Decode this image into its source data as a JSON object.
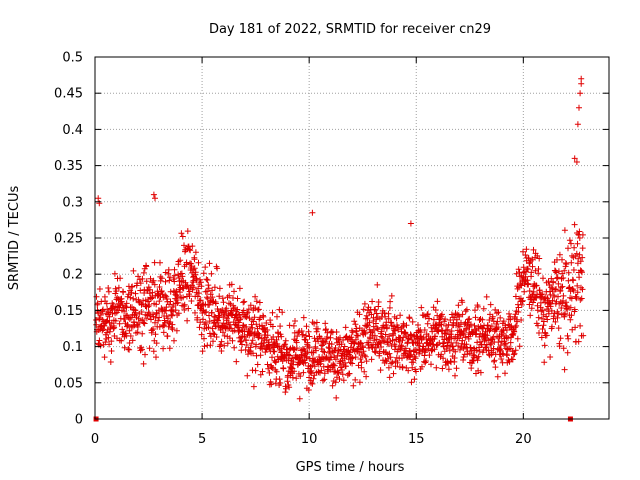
{
  "chart_data": {
    "type": "scatter",
    "title": "Day 181 of 2022, SRMTID for receiver cn29",
    "xlabel": "GPS time / hours",
    "ylabel": "SRMTID / TECUs",
    "xlim": [
      0,
      24
    ],
    "ylim": [
      0,
      0.5
    ],
    "xticks": [
      0,
      5,
      10,
      15,
      20
    ],
    "xtick_labels": [
      "0",
      "5",
      "10",
      "15",
      "20"
    ],
    "yticks": [
      0,
      0.05,
      0.1,
      0.15,
      0.2,
      0.25,
      0.3,
      0.35,
      0.4,
      0.45,
      0.5
    ],
    "ytick_labels": [
      "0",
      "0.05",
      "0.1",
      "0.15",
      "0.2",
      "0.25",
      "0.3",
      "0.35",
      "0.4",
      "0.45",
      "0.5"
    ],
    "grid": true,
    "marker": "+",
    "color": "#e00000",
    "series": [
      {
        "name": "SRMTID",
        "profile_x": [
          0,
          0.5,
          1,
          1.5,
          2,
          2.5,
          3,
          3.5,
          4,
          4.5,
          5,
          5.5,
          6,
          6.5,
          7,
          7.5,
          8,
          8.5,
          9,
          9.5,
          10,
          10.5,
          11,
          11.5,
          12,
          12.5,
          13,
          13.5,
          14,
          14.5,
          15,
          15.5,
          16,
          16.5,
          17,
          17.5,
          18,
          18.5,
          19,
          19.5,
          20,
          20.5,
          21,
          21.5,
          22,
          22.5,
          23
        ],
        "profile_mean": [
          0.14,
          0.13,
          0.15,
          0.14,
          0.15,
          0.15,
          0.16,
          0.15,
          0.19,
          0.2,
          0.16,
          0.15,
          0.14,
          0.14,
          0.12,
          0.12,
          0.11,
          0.09,
          0.08,
          0.09,
          0.09,
          0.1,
          0.09,
          0.08,
          0.09,
          0.11,
          0.12,
          0.12,
          0.11,
          0.1,
          0.1,
          0.11,
          0.12,
          0.11,
          0.12,
          0.11,
          0.11,
          0.12,
          0.11,
          0.11,
          0.2,
          0.19,
          0.14,
          0.17,
          0.16,
          0.2,
          0.18
        ],
        "profile_spread": [
          0.045,
          0.04,
          0.04,
          0.04,
          0.045,
          0.05,
          0.05,
          0.045,
          0.05,
          0.05,
          0.045,
          0.04,
          0.04,
          0.04,
          0.04,
          0.045,
          0.045,
          0.04,
          0.035,
          0.035,
          0.035,
          0.035,
          0.035,
          0.035,
          0.035,
          0.04,
          0.04,
          0.04,
          0.04,
          0.035,
          0.035,
          0.035,
          0.035,
          0.035,
          0.035,
          0.035,
          0.035,
          0.035,
          0.035,
          0.035,
          0.04,
          0.04,
          0.045,
          0.05,
          0.06,
          0.07,
          0.05
        ],
        "sample_step_hours": 0.0111,
        "x_end": 22.8,
        "outliers": [
          {
            "x": 0.15,
            "y": 0.305
          },
          {
            "x": 0.2,
            "y": 0.298
          },
          {
            "x": 2.75,
            "y": 0.31
          },
          {
            "x": 2.8,
            "y": 0.305
          },
          {
            "x": 10.15,
            "y": 0.285
          },
          {
            "x": 14.75,
            "y": 0.27
          },
          {
            "x": 22.4,
            "y": 0.36
          },
          {
            "x": 22.5,
            "y": 0.355
          },
          {
            "x": 22.55,
            "y": 0.407
          },
          {
            "x": 22.6,
            "y": 0.43
          },
          {
            "x": 22.65,
            "y": 0.45
          },
          {
            "x": 22.7,
            "y": 0.47
          },
          {
            "x": 22.7,
            "y": 0.463
          }
        ],
        "zero_points": [
          {
            "x": 0.05,
            "y": 0
          },
          {
            "x": 22.2,
            "y": 0
          }
        ]
      }
    ]
  }
}
